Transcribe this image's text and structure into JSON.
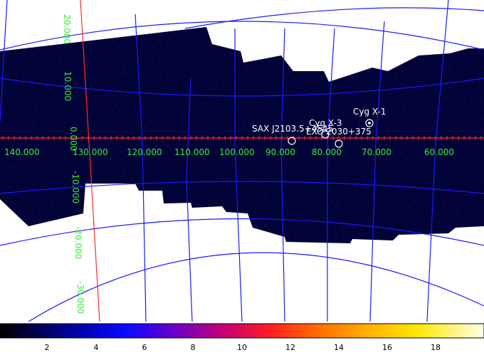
{
  "image": {
    "kind": "INTEGRAL/JEM-X style sky mosaic (galactic coordinates)",
    "background_color": "#ffffff",
    "map_color": "#000033",
    "grid_color": "#1a1aff",
    "equator_line_color": "#ff2a2a",
    "label_color": "#33ee33",
    "source_color": "#ffffff"
  },
  "longitude_labels": [
    "140.000",
    "130.000",
    "120.000",
    "110.000",
    "100.000",
    "90.000",
    "80.000",
    "70.000",
    "60.000"
  ],
  "latitude_labels": [
    "20.000",
    "10.000",
    "0.000",
    "-10.000",
    "-20.000",
    "-30.000"
  ],
  "sources": [
    {
      "name": "Cyg X-1",
      "marker": "circle-dot"
    },
    {
      "name": "Cyg X-3",
      "marker": "circle"
    },
    {
      "name": "EXO 2030+375",
      "marker": "circle"
    },
    {
      "name": "SAX J2103.5+4545",
      "marker": "circle"
    }
  ],
  "colorbar": {
    "ticks": [
      "2",
      "4",
      "6",
      "8",
      "10",
      "12",
      "14",
      "16",
      "18"
    ],
    "range": [
      0,
      20
    ],
    "colormap": "black-blue-purple-red-orange-yellow-white"
  }
}
